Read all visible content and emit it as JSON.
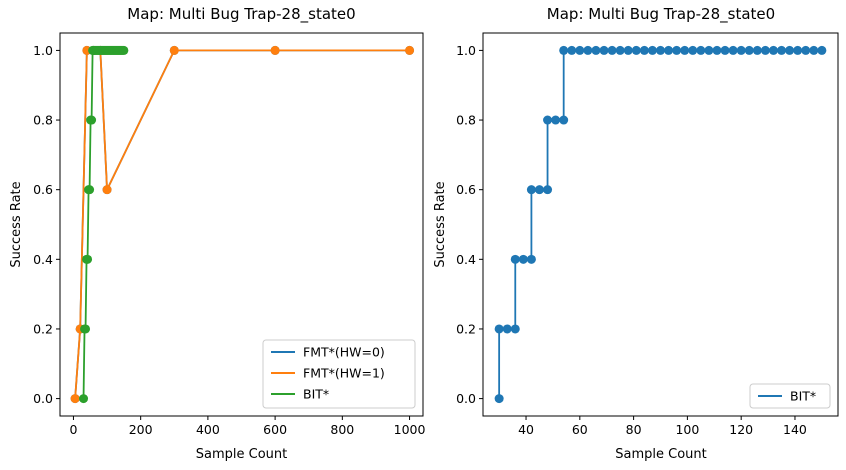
{
  "chart_data": [
    {
      "type": "line",
      "title": "Map: Multi Bug Trap-28_state0",
      "xlabel": "Sample Count",
      "ylabel": "Success Rate",
      "xlim": [
        -40,
        1040
      ],
      "ylim": [
        -0.05,
        1.05
      ],
      "xticks": [
        0,
        200,
        400,
        600,
        800,
        1000
      ],
      "yticks": [
        0.0,
        0.2,
        0.4,
        0.6,
        0.8,
        1.0
      ],
      "legend_position": "lower-right",
      "series": [
        {
          "name": "FMT*(HW=0)",
          "color": "#1f77b4",
          "points": [
            [
              5,
              0.0
            ],
            [
              20,
              0.2
            ],
            [
              40,
              1.0
            ],
            [
              60,
              1.0
            ],
            [
              80,
              1.0
            ],
            [
              100,
              0.6
            ],
            [
              300,
              1.0
            ],
            [
              600,
              1.0
            ],
            [
              1000,
              1.0
            ]
          ]
        },
        {
          "name": "FMT*(HW=1)",
          "color": "#ff7f0e",
          "points": [
            [
              5,
              0.0
            ],
            [
              20,
              0.2
            ],
            [
              40,
              1.0
            ],
            [
              60,
              1.0
            ],
            [
              80,
              1.0
            ],
            [
              100,
              0.6
            ],
            [
              300,
              1.0
            ],
            [
              600,
              1.0
            ],
            [
              1000,
              1.0
            ]
          ]
        },
        {
          "name": "BIT*",
          "color": "#2ca02c",
          "points": [
            [
              30,
              0.0
            ],
            [
              33,
              0.2
            ],
            [
              36,
              0.2
            ],
            [
              39,
              0.4
            ],
            [
              42,
              0.4
            ],
            [
              45,
              0.6
            ],
            [
              48,
              0.6
            ],
            [
              51,
              0.8
            ],
            [
              54,
              0.8
            ],
            [
              57,
              1.0
            ],
            [
              60,
              1.0
            ],
            [
              63,
              1.0
            ],
            [
              66,
              1.0
            ],
            [
              69,
              1.0
            ],
            [
              72,
              1.0
            ],
            [
              75,
              1.0
            ],
            [
              78,
              1.0
            ],
            [
              81,
              1.0
            ],
            [
              84,
              1.0
            ],
            [
              87,
              1.0
            ],
            [
              90,
              1.0
            ],
            [
              93,
              1.0
            ],
            [
              96,
              1.0
            ],
            [
              99,
              1.0
            ],
            [
              102,
              1.0
            ],
            [
              105,
              1.0
            ],
            [
              108,
              1.0
            ],
            [
              111,
              1.0
            ],
            [
              114,
              1.0
            ],
            [
              117,
              1.0
            ],
            [
              120,
              1.0
            ],
            [
              123,
              1.0
            ],
            [
              126,
              1.0
            ],
            [
              129,
              1.0
            ],
            [
              132,
              1.0
            ],
            [
              135,
              1.0
            ],
            [
              138,
              1.0
            ],
            [
              141,
              1.0
            ],
            [
              144,
              1.0
            ],
            [
              147,
              1.0
            ],
            [
              150,
              1.0
            ]
          ]
        }
      ]
    },
    {
      "type": "line",
      "title": "Map: Multi Bug Trap-28_state0",
      "xlabel": "Sample Count",
      "ylabel": "Success Rate",
      "xlim": [
        24,
        156
      ],
      "ylim": [
        -0.05,
        1.05
      ],
      "xticks": [
        40,
        60,
        80,
        100,
        120,
        140
      ],
      "yticks": [
        0.0,
        0.2,
        0.4,
        0.6,
        0.8,
        1.0
      ],
      "legend_position": "lower-right",
      "series": [
        {
          "name": "BIT*",
          "color": "#1f77b4",
          "points": [
            [
              30,
              0.0
            ],
            [
              30,
              0.2
            ],
            [
              33,
              0.2
            ],
            [
              36,
              0.2
            ],
            [
              36,
              0.4
            ],
            [
              39,
              0.4
            ],
            [
              42,
              0.4
            ],
            [
              42,
              0.6
            ],
            [
              45,
              0.6
            ],
            [
              48,
              0.6
            ],
            [
              48,
              0.8
            ],
            [
              51,
              0.8
            ],
            [
              54,
              0.8
            ],
            [
              54,
              1.0
            ],
            [
              57,
              1.0
            ],
            [
              60,
              1.0
            ],
            [
              63,
              1.0
            ],
            [
              66,
              1.0
            ],
            [
              69,
              1.0
            ],
            [
              72,
              1.0
            ],
            [
              75,
              1.0
            ],
            [
              78,
              1.0
            ],
            [
              81,
              1.0
            ],
            [
              84,
              1.0
            ],
            [
              87,
              1.0
            ],
            [
              90,
              1.0
            ],
            [
              93,
              1.0
            ],
            [
              96,
              1.0
            ],
            [
              99,
              1.0
            ],
            [
              102,
              1.0
            ],
            [
              105,
              1.0
            ],
            [
              108,
              1.0
            ],
            [
              111,
              1.0
            ],
            [
              114,
              1.0
            ],
            [
              117,
              1.0
            ],
            [
              120,
              1.0
            ],
            [
              123,
              1.0
            ],
            [
              126,
              1.0
            ],
            [
              129,
              1.0
            ],
            [
              132,
              1.0
            ],
            [
              135,
              1.0
            ],
            [
              138,
              1.0
            ],
            [
              141,
              1.0
            ],
            [
              144,
              1.0
            ],
            [
              147,
              1.0
            ],
            [
              150,
              1.0
            ]
          ]
        }
      ]
    }
  ]
}
